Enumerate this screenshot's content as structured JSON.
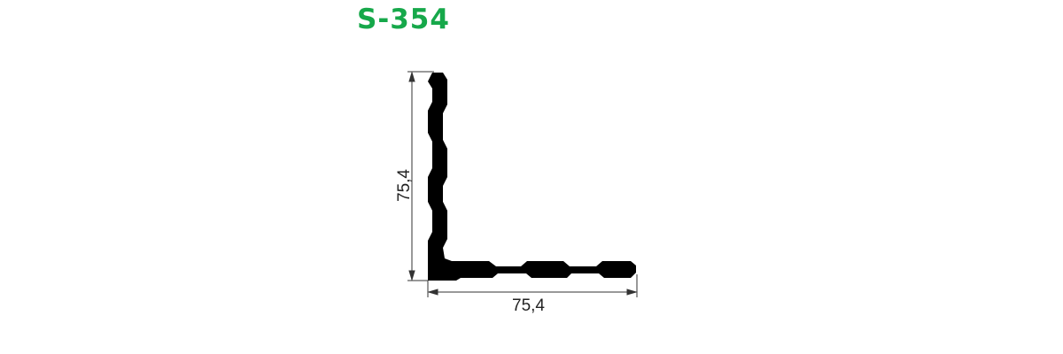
{
  "title": "S-354",
  "colors": {
    "title": "#16a84a",
    "profile": "#000000",
    "dimension_line": "#333333"
  },
  "dimensions": {
    "height_label": "75,4",
    "width_label": "75,4"
  }
}
